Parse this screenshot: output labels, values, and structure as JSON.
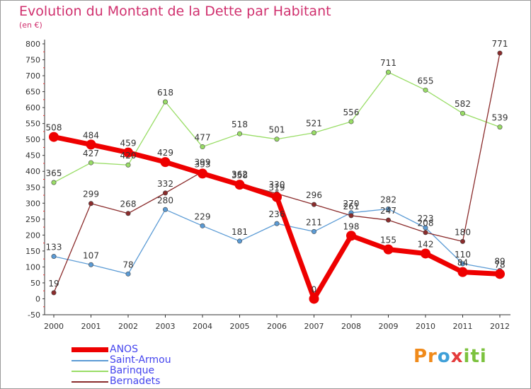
{
  "title": "Evolution du Montant de la Dette par Habitant",
  "unit": "(en €)",
  "logo_text": "Proxiti",
  "chart_data": {
    "type": "line",
    "x": [
      "2000",
      "2001",
      "2002",
      "2003",
      "2004",
      "2005",
      "2006",
      "2007",
      "2008",
      "2009",
      "2010",
      "2011",
      "2012"
    ],
    "ylim": [
      -50,
      800
    ],
    "yticks": [
      -50,
      0,
      50,
      100,
      150,
      200,
      250,
      300,
      350,
      400,
      450,
      500,
      550,
      600,
      650,
      700,
      750,
      800
    ],
    "grid": false,
    "legend_position": "bottom-left",
    "series": [
      {
        "name": "ANOS",
        "color": "#ee0000",
        "values": [
          508,
          484,
          459,
          429,
          393,
          358,
          319,
          0,
          198,
          155,
          142,
          84,
          78
        ]
      },
      {
        "name": "Saint-Armou",
        "color": "#5b9bd5",
        "values": [
          133,
          107,
          78,
          280,
          229,
          181,
          236,
          211,
          270,
          282,
          223,
          110,
          89
        ]
      },
      {
        "name": "Barinque",
        "color": "#99dd66",
        "values": [
          365,
          427,
          420,
          618,
          477,
          518,
          501,
          521,
          556,
          711,
          655,
          582,
          539
        ]
      },
      {
        "name": "Bernadets",
        "color": "#8b2c2c",
        "values": [
          19,
          299,
          268,
          332,
          399,
          362,
          330,
          296,
          261,
          247,
          208,
          180,
          771
        ]
      }
    ]
  }
}
